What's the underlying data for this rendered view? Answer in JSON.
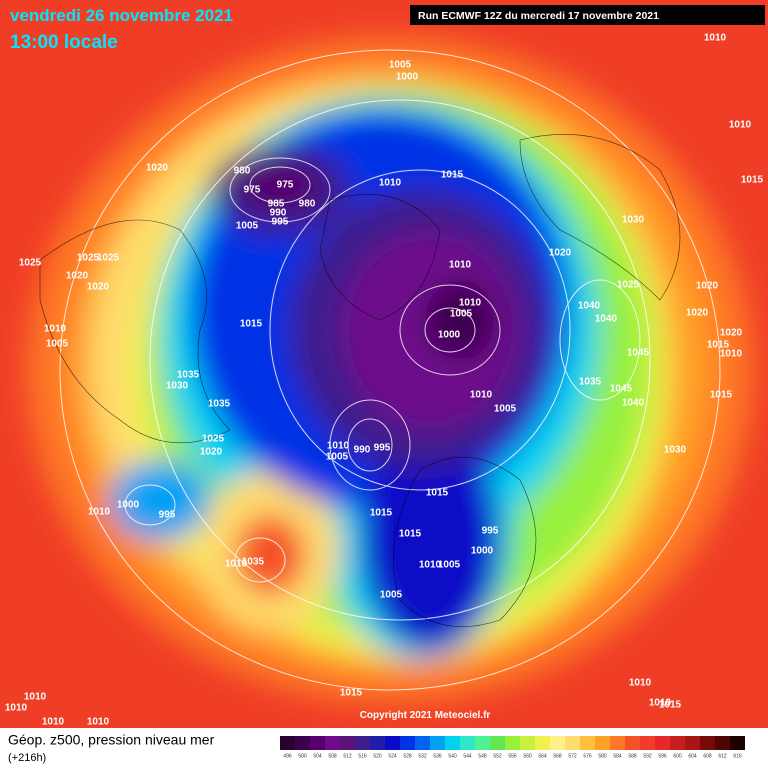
{
  "header": {
    "date": "vendredi 26 novembre 2021",
    "time": "13:00 locale",
    "run": "Run ECMWF 12Z du mercredi 17 novembre 2021"
  },
  "map": {
    "pressure_labels": [
      1010,
      1005,
      1000,
      1010,
      1020,
      980,
      975,
      975,
      1010,
      1015,
      1015,
      985,
      980,
      990,
      995,
      1005,
      1030,
      1025,
      1020,
      1025,
      1025,
      1010,
      1020,
      1020,
      1025,
      1020,
      1040,
      1010,
      1005,
      1020,
      1040,
      1015,
      1010,
      1020,
      1000,
      1015,
      1005,
      1010,
      1045,
      1035,
      1030,
      1035,
      1045,
      1010,
      1015,
      1040,
      1005,
      1035,
      1025,
      1010,
      995,
      990,
      1005,
      1020,
      1030,
      1015,
      1000,
      1010,
      995,
      1015,
      995,
      1015,
      1000,
      1010,
      1005,
      1035,
      1010,
      1005,
      1015,
      1010,
      1010,
      1010,
      1010,
      1015,
      1010,
      1010
    ],
    "copyright": "Copyright 2021 Meteociel.fr"
  },
  "legend": {
    "title": "Géop. z500, pression niveau mer",
    "lead": "(+216h)",
    "ticks": [
      496,
      500,
      504,
      508,
      512,
      516,
      520,
      524,
      528,
      532,
      536,
      540,
      544,
      548,
      552,
      556,
      560,
      564,
      568,
      572,
      576,
      580,
      584,
      588,
      592,
      596,
      600,
      604,
      608,
      612,
      616
    ],
    "colors": [
      "#2a0030",
      "#3c0050",
      "#55006e",
      "#6e0a8c",
      "#5a1478",
      "#3c1e8c",
      "#1e1eaa",
      "#0a0ac8",
      "#0032e6",
      "#0064f0",
      "#00a0f5",
      "#00d2f0",
      "#2ee6c8",
      "#50f096",
      "#64e650",
      "#96f03c",
      "#c8f03c",
      "#f0f050",
      "#fff08c",
      "#ffdc6e",
      "#ffbe3c",
      "#ffa028",
      "#ff7828",
      "#f55028",
      "#f03c28",
      "#e62828",
      "#c81e1e",
      "#aa1414",
      "#780a0a",
      "#500505",
      "#1e0000"
    ]
  }
}
